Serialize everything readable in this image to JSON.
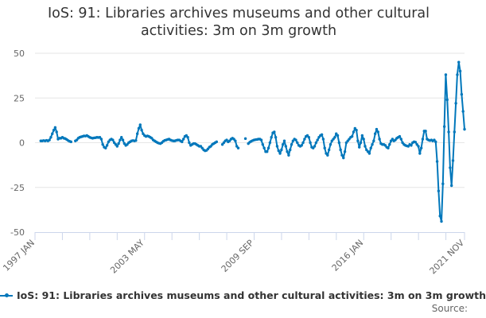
{
  "chart_data": {
    "type": "line",
    "title": "IoS: 91: Libraries archives museums and other cultural activities: 3m on 3m growth",
    "xlabel": "",
    "ylabel": "",
    "frequency": "monthly",
    "x_start": "1997 JAN",
    "x_end": "2021 NOV",
    "x_tick_labels": [
      "1997 JAN",
      "2003 MAY",
      "2009 SEP",
      "2016 JAN",
      "2021 NOV"
    ],
    "ylim": [
      -50,
      50
    ],
    "y_ticks": [
      50,
      25,
      0,
      -25,
      -50
    ],
    "grid": true,
    "legend_position": "bottom",
    "series": [
      {
        "name": "IoS: 91: Libraries archives museums and other cultural activities: 3m on 3m growth",
        "color": "#0077bb",
        "values": [
          null,
          null,
          null,
          null,
          1,
          1,
          1.2,
          1,
          1.3,
          1,
          1.5,
          3,
          5,
          7,
          8.5,
          6,
          2,
          2.5,
          2.5,
          3,
          2.5,
          2.3,
          1.8,
          1.2,
          0.8,
          0.5,
          null,
          null,
          1,
          1.5,
          2.5,
          3,
          3.3,
          3.5,
          3.8,
          3.7,
          4,
          3.5,
          3,
          2.7,
          2.5,
          2.7,
          2.8,
          3,
          2.9,
          3,
          2,
          -1,
          -2.5,
          -3,
          -1.5,
          0.5,
          1.5,
          2,
          1.5,
          0,
          -1,
          -2,
          -0.5,
          1.5,
          3,
          1.5,
          -0.5,
          -1.5,
          -1,
          0,
          0.5,
          1,
          1.2,
          1,
          1.2,
          5,
          8,
          10,
          7,
          5,
          4,
          3.5,
          3.8,
          3.5,
          3,
          2.5,
          1.5,
          1,
          0.5,
          0,
          -0.3,
          -0.5,
          0,
          0.8,
          1.3,
          1.5,
          1.8,
          2,
          1.5,
          1.2,
          1,
          1,
          1.3,
          1.5,
          1.5,
          1,
          0.5,
          2,
          3.5,
          4,
          3,
          0,
          -1.5,
          -1,
          -0.5,
          -0.5,
          -1,
          -1.5,
          -2,
          -2,
          -3,
          -4,
          -4.5,
          -4.3,
          -3.5,
          -2.5,
          -2,
          -1,
          -0.5,
          0,
          0.5,
          null,
          null,
          null,
          -1,
          0,
          1,
          1.5,
          0.5,
          1,
          2,
          2.5,
          2,
          1,
          -2,
          -3,
          null,
          null,
          null,
          null,
          2.3,
          null,
          -0.5,
          0.3,
          0.8,
          1.2,
          1.5,
          1.7,
          1.8,
          2,
          2,
          1.5,
          -1,
          -3,
          -5,
          -5,
          -3,
          0,
          3,
          5.5,
          6,
          3,
          -2,
          -4.5,
          -6,
          -4,
          -1,
          1,
          -2,
          -5,
          -7,
          -4,
          -1,
          1,
          2,
          1.5,
          0,
          -1.5,
          -2,
          -1.5,
          0,
          2,
          3.5,
          4,
          3,
          0,
          -2.5,
          -3,
          -2,
          0,
          1.5,
          3,
          4,
          4.5,
          2,
          -3,
          -6,
          -7,
          -4,
          -1,
          1,
          2,
          3,
          5,
          4,
          0,
          -4,
          -7,
          -8.5,
          -5,
          0,
          1,
          2,
          3,
          3.5,
          6,
          8,
          7,
          1,
          -2.5,
          0,
          4,
          2,
          -2,
          -4,
          -5,
          -6,
          -3,
          -1,
          1,
          5,
          7.5,
          6,
          2,
          -0.5,
          -1,
          -1,
          -1.5,
          -2.5,
          -3,
          -1,
          1,
          2,
          1,
          1.5,
          2.5,
          3,
          3.5,
          2,
          0,
          -1,
          -1.5,
          -1.8,
          -2,
          -1,
          -1.5,
          0,
          0.5,
          0.3,
          -1,
          -2,
          -6,
          -3,
          2,
          6.5,
          6.5,
          2,
          1.5,
          1.2,
          1.5,
          1,
          1.5,
          0.5,
          -10.5,
          -27,
          -41,
          -44,
          -23,
          9,
          38,
          24,
          6,
          -14,
          -24,
          -10,
          6,
          22,
          38,
          45,
          40,
          27,
          17.5,
          7.5
        ]
      }
    ]
  },
  "title_lines": [
    "IoS: 91: Libraries archives museums and other cultural",
    "activities: 3m on 3m growth"
  ],
  "source_label": "Source:"
}
